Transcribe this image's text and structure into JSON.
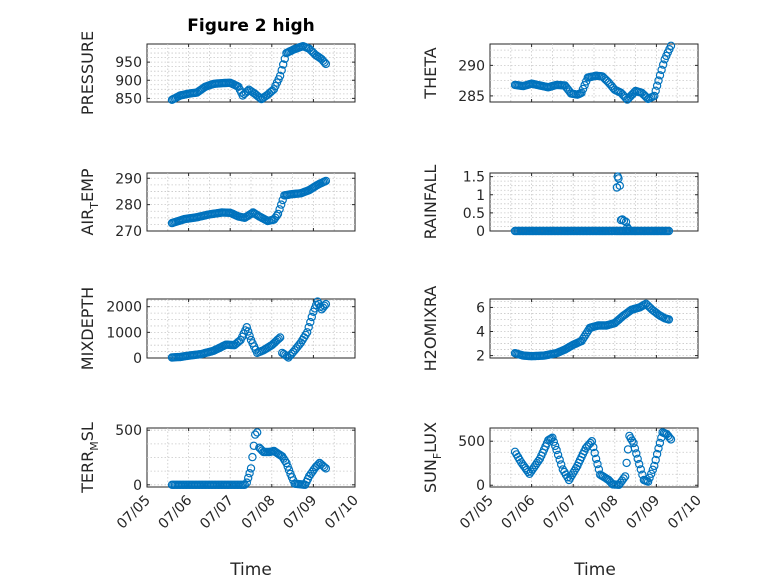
{
  "figure_title": "Figure 2 high",
  "marker_color": "#0072BD",
  "x_label": "Time",
  "x_ticks": [
    "07/05",
    "07/06",
    "07/07",
    "07/08",
    "07/09",
    "07/10"
  ],
  "chart_data": [
    {
      "type": "scatter",
      "ylabel": "PRESSURE",
      "sub": "",
      "ylim": [
        840,
        1000
      ],
      "yticks": [
        850,
        900,
        950
      ],
      "keys": [
        [
          0.6,
          846
        ],
        [
          0.8,
          858
        ],
        [
          1.0,
          863
        ],
        [
          1.2,
          866
        ],
        [
          1.4,
          882
        ],
        [
          1.6,
          890
        ],
        [
          1.8,
          892
        ],
        [
          2.0,
          893
        ],
        [
          2.2,
          882
        ],
        [
          2.3,
          858
        ],
        [
          2.45,
          874
        ],
        [
          2.6,
          862
        ],
        [
          2.75,
          848
        ],
        [
          2.9,
          860
        ],
        [
          3.05,
          875
        ],
        [
          3.2,
          912
        ],
        [
          3.35,
          975
        ],
        [
          3.55,
          986
        ],
        [
          3.75,
          994
        ],
        [
          3.9,
          987
        ],
        [
          4.05,
          970
        ],
        [
          4.2,
          958
        ],
        [
          4.3,
          945
        ]
      ]
    },
    {
      "type": "scatter",
      "ylabel": "THETA",
      "sub": "",
      "ylim": [
        284,
        293.5
      ],
      "yticks": [
        285,
        290
      ],
      "keys": [
        [
          0.6,
          286.8
        ],
        [
          0.8,
          286.6
        ],
        [
          1.0,
          287.0
        ],
        [
          1.2,
          286.7
        ],
        [
          1.4,
          286.4
        ],
        [
          1.6,
          286.8
        ],
        [
          1.8,
          286.7
        ],
        [
          1.95,
          285.4
        ],
        [
          2.1,
          285.2
        ],
        [
          2.2,
          285.5
        ],
        [
          2.35,
          288.0
        ],
        [
          2.55,
          288.3
        ],
        [
          2.7,
          288.2
        ],
        [
          2.85,
          287.2
        ],
        [
          3.0,
          286.0
        ],
        [
          3.15,
          285.5
        ],
        [
          3.3,
          284.4
        ],
        [
          3.5,
          285.8
        ],
        [
          3.65,
          285.5
        ],
        [
          3.8,
          284.5
        ],
        [
          3.95,
          285.0
        ],
        [
          4.05,
          287.5
        ],
        [
          4.2,
          291.0
        ],
        [
          4.35,
          293.2
        ]
      ]
    },
    {
      "type": "scatter",
      "ylabel": "AIR",
      "sub": "T",
      "ylabel2": "EMP",
      "ylim": [
        270,
        292
      ],
      "yticks": [
        270,
        280,
        290
      ],
      "keys": [
        [
          0.6,
          273.0
        ],
        [
          0.9,
          274.5
        ],
        [
          1.2,
          275.2
        ],
        [
          1.5,
          276.3
        ],
        [
          1.8,
          277.0
        ],
        [
          2.0,
          276.9
        ],
        [
          2.2,
          275.5
        ],
        [
          2.35,
          275.0
        ],
        [
          2.55,
          277.0
        ],
        [
          2.7,
          275.5
        ],
        [
          2.9,
          273.8
        ],
        [
          3.05,
          274.3
        ],
        [
          3.15,
          276.5
        ],
        [
          3.3,
          283.5
        ],
        [
          3.5,
          284.0
        ],
        [
          3.7,
          284.3
        ],
        [
          3.9,
          285.5
        ],
        [
          4.1,
          287.5
        ],
        [
          4.3,
          289.0
        ]
      ]
    },
    {
      "type": "scatter",
      "ylabel": "RAINFALL",
      "sub": "",
      "ylim": [
        0,
        1.6
      ],
      "yticks": [
        0,
        0.5,
        1,
        1.5
      ],
      "keys": [
        [
          0.6,
          0
        ],
        [
          2.95,
          0
        ],
        [
          3.0,
          0
        ],
        [
          3.3,
          0
        ],
        [
          4.3,
          0
        ]
      ],
      "extra": [
        [
          3.05,
          1.2
        ],
        [
          3.07,
          1.5
        ],
        [
          3.09,
          1.45
        ],
        [
          3.12,
          1.25
        ],
        [
          3.15,
          0.3
        ],
        [
          3.18,
          0.32
        ],
        [
          3.22,
          0.28
        ],
        [
          3.27,
          0.25
        ],
        [
          3.3,
          0.1
        ],
        [
          3.33,
          0.05
        ]
      ]
    },
    {
      "type": "scatter",
      "ylabel": "MIXDEPTH",
      "sub": "",
      "ylim": [
        0,
        2300
      ],
      "yticks": [
        0,
        1000,
        2000
      ],
      "keys": [
        [
          0.6,
          20
        ],
        [
          0.8,
          40
        ],
        [
          1.0,
          90
        ],
        [
          1.3,
          150
        ],
        [
          1.6,
          280
        ],
        [
          1.9,
          520
        ],
        [
          2.1,
          500
        ],
        [
          2.25,
          700
        ],
        [
          2.4,
          1200
        ],
        [
          2.5,
          700
        ],
        [
          2.65,
          200
        ],
        [
          2.8,
          300
        ],
        [
          3.0,
          500
        ],
        [
          3.2,
          800
        ],
        [
          3.25,
          200
        ],
        [
          3.4,
          20
        ],
        [
          3.55,
          300
        ],
        [
          3.7,
          600
        ],
        [
          3.85,
          1000
        ],
        [
          4.0,
          1800
        ],
        [
          4.1,
          2200
        ],
        [
          4.2,
          1900
        ],
        [
          4.3,
          2100
        ]
      ]
    },
    {
      "type": "scatter",
      "ylabel": "H2OMIXRA",
      "sub": "",
      "ylim": [
        1.8,
        6.7
      ],
      "yticks": [
        2,
        4,
        6
      ],
      "keys": [
        [
          0.6,
          2.2
        ],
        [
          0.8,
          2.0
        ],
        [
          1.0,
          1.95
        ],
        [
          1.3,
          2.0
        ],
        [
          1.6,
          2.2
        ],
        [
          1.8,
          2.5
        ],
        [
          2.0,
          2.9
        ],
        [
          2.2,
          3.2
        ],
        [
          2.4,
          4.3
        ],
        [
          2.6,
          4.5
        ],
        [
          2.8,
          4.5
        ],
        [
          3.0,
          4.7
        ],
        [
          3.2,
          5.3
        ],
        [
          3.4,
          5.8
        ],
        [
          3.6,
          6.0
        ],
        [
          3.75,
          6.3
        ],
        [
          3.9,
          5.8
        ],
        [
          4.05,
          5.4
        ],
        [
          4.2,
          5.1
        ],
        [
          4.3,
          5.0
        ]
      ]
    },
    {
      "type": "scatter",
      "ylabel": "TERR",
      "sub": "M",
      "ylabel2": "SL",
      "ylim": [
        -20,
        520
      ],
      "yticks": [
        0,
        500
      ],
      "keys": [
        [
          0.6,
          0
        ],
        [
          2.35,
          0
        ],
        [
          2.4,
          20
        ],
        [
          2.5,
          150
        ],
        [
          2.6,
          460
        ],
        [
          2.65,
          480
        ],
        [
          2.7,
          340
        ],
        [
          2.8,
          300
        ],
        [
          2.95,
          300
        ],
        [
          3.05,
          310
        ],
        [
          3.25,
          260
        ],
        [
          3.35,
          200
        ],
        [
          3.45,
          100
        ],
        [
          3.55,
          10
        ],
        [
          3.8,
          0
        ],
        [
          3.9,
          80
        ],
        [
          4.05,
          160
        ],
        [
          4.15,
          200
        ],
        [
          4.3,
          150
        ]
      ]
    },
    {
      "type": "scatter",
      "ylabel": "SUN",
      "sub": "F",
      "ylabel2": "LUX",
      "ylim": [
        -20,
        650
      ],
      "yticks": [
        0,
        500
      ],
      "keys": [
        [
          0.6,
          380
        ],
        [
          0.75,
          260
        ],
        [
          0.95,
          130
        ],
        [
          1.2,
          300
        ],
        [
          1.4,
          510
        ],
        [
          1.5,
          540
        ],
        [
          1.6,
          400
        ],
        [
          1.75,
          180
        ],
        [
          1.9,
          60
        ],
        [
          2.1,
          220
        ],
        [
          2.3,
          420
        ],
        [
          2.45,
          500
        ],
        [
          2.55,
          300
        ],
        [
          2.65,
          120
        ],
        [
          2.85,
          60
        ],
        [
          2.95,
          10
        ],
        [
          3.1,
          5
        ],
        [
          3.25,
          100
        ],
        [
          3.35,
          560
        ],
        [
          3.45,
          480
        ],
        [
          3.55,
          300
        ],
        [
          3.7,
          60
        ],
        [
          3.8,
          40
        ],
        [
          3.95,
          220
        ],
        [
          4.05,
          420
        ],
        [
          4.15,
          600
        ],
        [
          4.25,
          580
        ],
        [
          4.35,
          520
        ]
      ]
    }
  ]
}
